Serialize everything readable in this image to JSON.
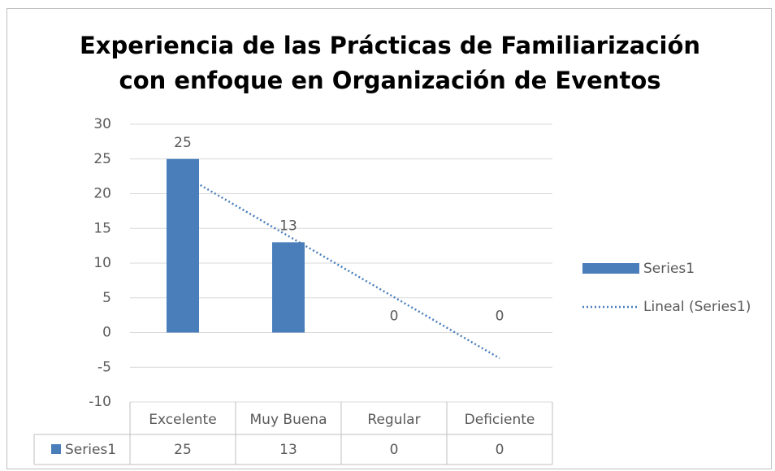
{
  "chart_data": {
    "type": "bar",
    "title": [
      "Experiencia de las Prácticas de Familiarización",
      "con enfoque en Organización de Eventos"
    ],
    "categories": [
      "Excelente",
      "Muy Buena",
      "Regular",
      "Deficiente"
    ],
    "series": [
      {
        "name": "Series1",
        "color": "#4a7ebb",
        "values": [
          25,
          13,
          0,
          0
        ]
      }
    ],
    "trendline": {
      "name": "Lineal (Series1)",
      "kind": "linear",
      "color": "#4a7ebb"
    },
    "ylim": [
      -10,
      30
    ],
    "yticks": [
      -10,
      -5,
      0,
      5,
      10,
      15,
      20,
      25,
      30
    ],
    "grid": true,
    "legend": "right",
    "data_table": true
  }
}
